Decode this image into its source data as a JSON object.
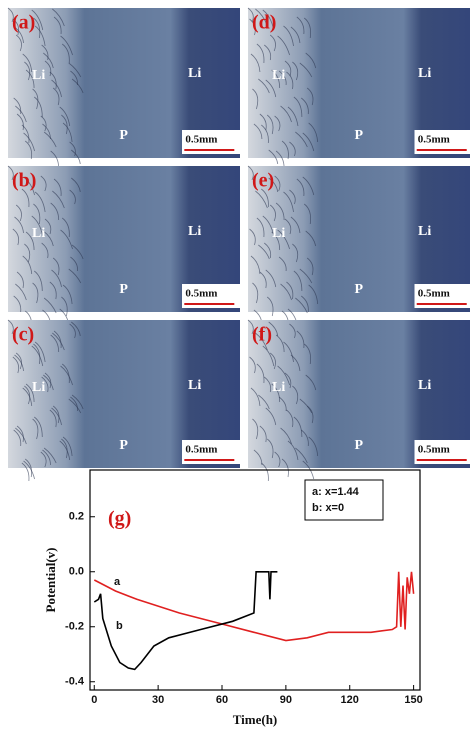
{
  "panels": [
    {
      "label": "(a)",
      "left": "Li",
      "right": "Li",
      "middle": "P",
      "scale": "0.5mm"
    },
    {
      "label": "(b)",
      "left": "Li",
      "right": "Li",
      "middle": "P",
      "scale": "0.5mm"
    },
    {
      "label": "(c)",
      "left": "Li",
      "right": "Li",
      "middle": "P",
      "scale": "0.5mm"
    },
    {
      "label": "(d)",
      "left": "Li",
      "right": "Li",
      "middle": "P",
      "scale": "0.5mm"
    },
    {
      "label": "(e)",
      "left": "Li",
      "right": "Li",
      "middle": "P",
      "scale": "0.5mm"
    },
    {
      "label": "(f)",
      "left": "Li",
      "right": "Li",
      "middle": "P",
      "scale": "0.5mm"
    }
  ],
  "chart_data": {
    "type": "line",
    "annotation": "(g)",
    "xlabel": "Time(h)",
    "ylabel": "Potential(v)",
    "xlim": [
      -2,
      153
    ],
    "ylim": [
      -0.43,
      0.37
    ],
    "xticks": [
      0,
      30,
      60,
      90,
      120,
      150
    ],
    "yticks": [
      0.2,
      {
        "value": 0,
        "label": "0.0"
      },
      -0.2,
      -0.4
    ],
    "legend": [
      "a: x=1.44",
      "b: x=0"
    ],
    "series": [
      {
        "name": "a",
        "color": "#e02020",
        "x": [
          0,
          10,
          20,
          40,
          60,
          75,
          90,
          100,
          110,
          130,
          140,
          142,
          143,
          144,
          145,
          146,
          147,
          148,
          149,
          150
        ],
        "values": [
          -0.03,
          -0.07,
          -0.1,
          -0.15,
          -0.19,
          -0.22,
          -0.25,
          -0.24,
          -0.22,
          -0.22,
          -0.21,
          -0.2,
          0,
          -0.2,
          -0.05,
          -0.21,
          -0.02,
          -0.08,
          0,
          -0.08
        ]
      },
      {
        "name": "b",
        "color": "#000000",
        "x": [
          0,
          2,
          3,
          4,
          8,
          12,
          16,
          19,
          22,
          28,
          35,
          50,
          65,
          75,
          76,
          82,
          82.5,
          83,
          86
        ],
        "values": [
          -0.11,
          -0.1,
          -0.08,
          -0.17,
          -0.27,
          -0.33,
          -0.35,
          -0.355,
          -0.33,
          -0.27,
          -0.24,
          -0.21,
          -0.18,
          -0.15,
          0,
          0,
          -0.1,
          0,
          0
        ]
      }
    ]
  }
}
